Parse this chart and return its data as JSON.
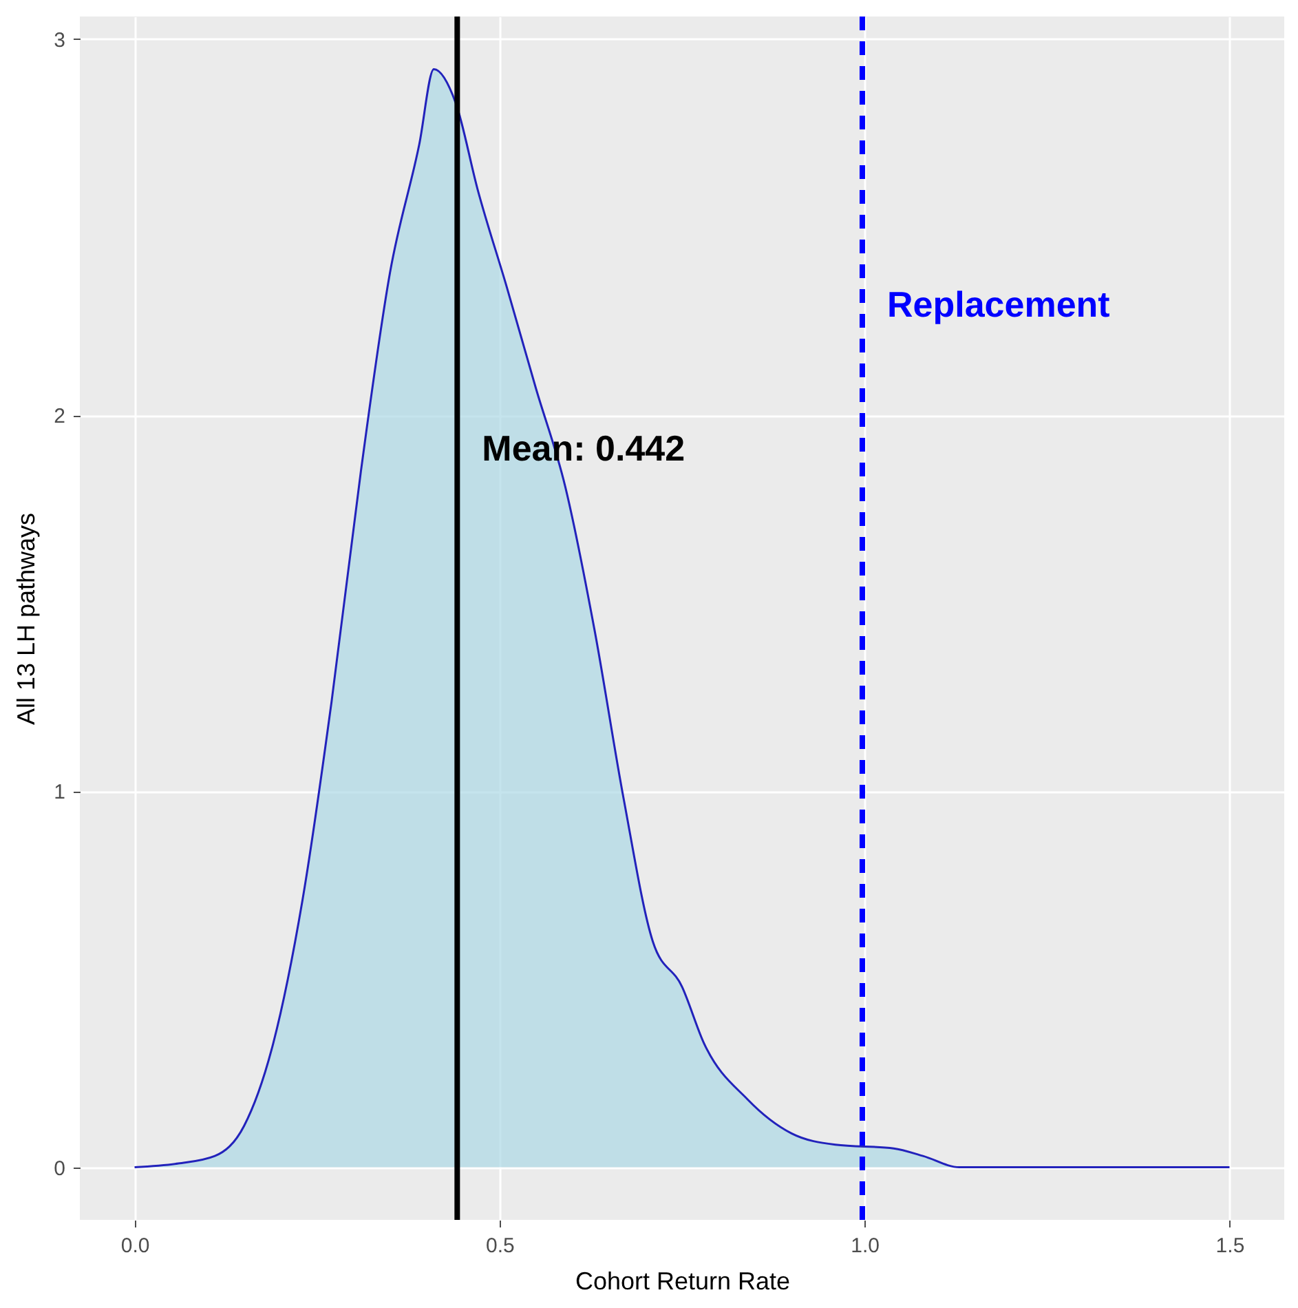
{
  "chart_data": {
    "type": "area",
    "xlabel": "Cohort Return Rate",
    "ylabel": "All 13 LH pathways",
    "x": [
      0,
      0.06,
      0.11,
      0.15,
      0.19,
      0.23,
      0.27,
      0.31,
      0.35,
      0.39,
      0.41,
      0.44,
      0.47,
      0.51,
      0.55,
      0.59,
      0.63,
      0.67,
      0.71,
      0.75,
      0.78,
      0.84,
      0.9,
      0.96,
      1.04,
      1.08,
      1.13,
      1.5
    ],
    "series": [
      {
        "color": "#add8e6",
        "values": [
          0,
          0.01,
          0.03,
          0.11,
          0.33,
          0.71,
          1.24,
          1.85,
          2.38,
          2.72,
          2.92,
          2.83,
          2.6,
          2.34,
          2.07,
          1.81,
          1.43,
          0.98,
          0.6,
          0.48,
          0.33,
          0.18,
          0.09,
          0.06,
          0.05,
          0.03,
          0,
          0
        ]
      }
    ],
    "xlim": [
      -0.075,
      1.575
    ],
    "ylim": [
      -0.14,
      3.06
    ],
    "xticks": [
      {
        "value": 0,
        "label": "0.0"
      },
      0.5,
      {
        "value": 1,
        "label": "1.0"
      },
      1.5
    ],
    "yticks": [
      0,
      1,
      2,
      3
    ],
    "ref_lines": [
      {
        "axis": "x",
        "value": 0.442,
        "color": "#000000",
        "line_style": "solid",
        "label": "Mean: 0.442"
      },
      {
        "axis": "x",
        "value": 0.997,
        "color": "#0000ff",
        "line_style": "dashed",
        "label": "Replacement"
      }
    ],
    "grid": true
  }
}
